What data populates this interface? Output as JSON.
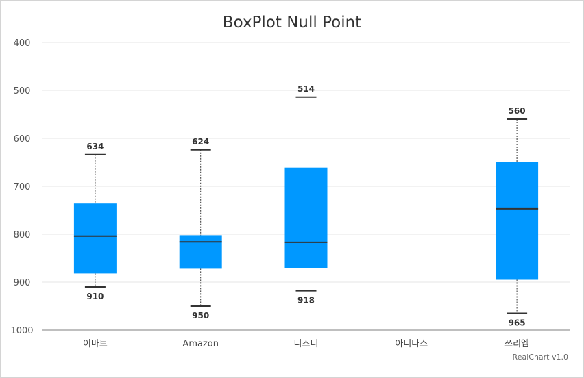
{
  "chart_data": {
    "type": "boxplot",
    "title": "BoxPlot Null Point",
    "credit": "RealChart v1.0",
    "y_axis": {
      "min": 400,
      "max": 1000,
      "reversed": true,
      "ticks": [
        400,
        500,
        600,
        700,
        800,
        900,
        1000
      ],
      "grid": true
    },
    "categories": [
      "이마트",
      "Amazon",
      "디즈니",
      "아디다스",
      "쓰리엠"
    ],
    "box_color": "#0098ff",
    "series": [
      {
        "category": "이마트",
        "low": 634,
        "q1": 736,
        "median": 804,
        "q3": 882,
        "high": 910
      },
      {
        "category": "Amazon",
        "low": 624,
        "q1": 802,
        "median": 816,
        "q3": 872,
        "high": 950
      },
      {
        "category": "디즈니",
        "low": 514,
        "q1": 661,
        "median": 817,
        "q3": 870,
        "high": 918
      },
      {
        "category": "아디다스",
        "low": null,
        "q1": null,
        "median": null,
        "q3": null,
        "high": null
      },
      {
        "category": "쓰리엠",
        "low": 560,
        "q1": 649,
        "median": 747,
        "q3": 895,
        "high": 965
      }
    ]
  }
}
